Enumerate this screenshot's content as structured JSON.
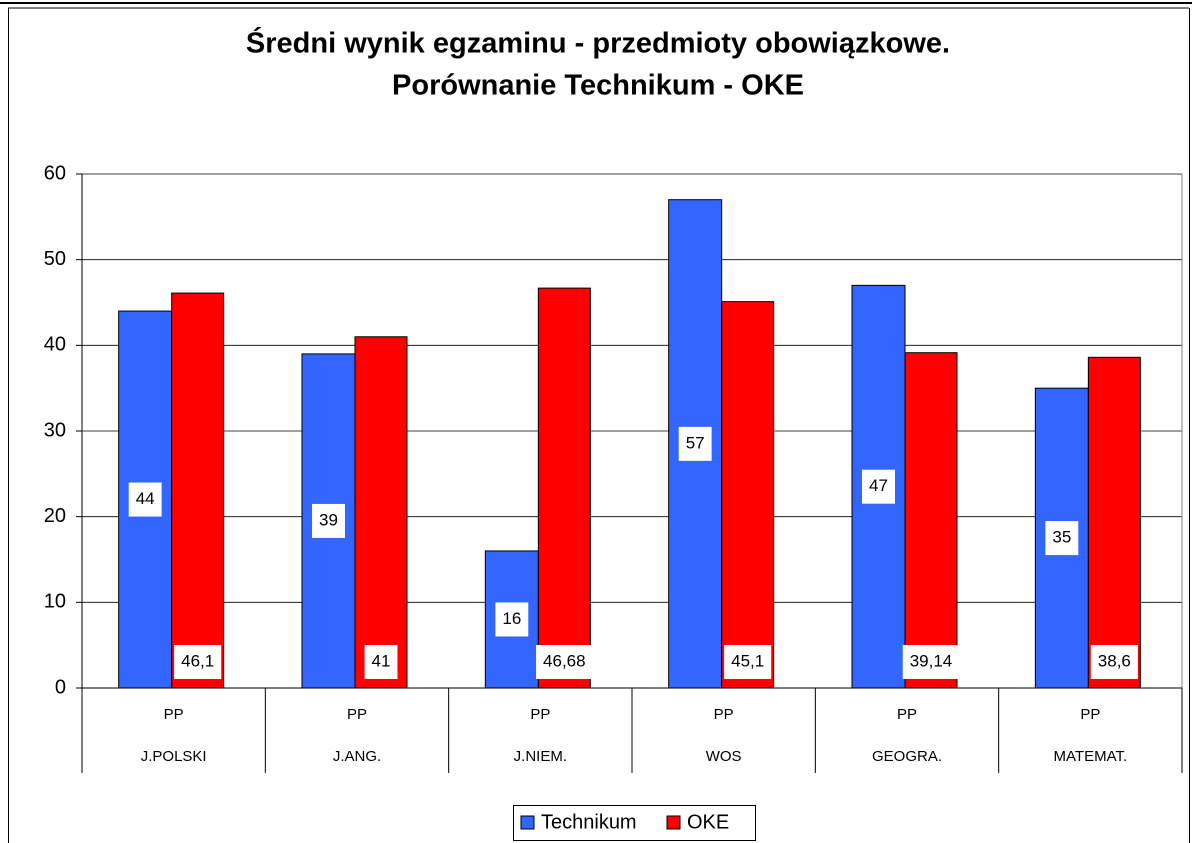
{
  "chart_data": {
    "type": "bar",
    "title": [
      "Średni wynik egzaminu - przedmioty obowiązkowe.",
      "Porównanie Technikum - OKE"
    ],
    "subcategories": [
      "PP",
      "PP",
      "PP",
      "PP",
      "PP",
      "PP"
    ],
    "categories": [
      "J.POLSKI",
      "J.ANG.",
      "J.NIEM.",
      "WOS",
      "GEOGRA.",
      "MATEMAT."
    ],
    "series": [
      {
        "name": "Technikum",
        "color": "#3366ff",
        "values": [
          44,
          39,
          16,
          57,
          47,
          35
        ]
      },
      {
        "name": "OKE",
        "color": "#ff0000",
        "values": [
          46.1,
          41,
          46.68,
          45.1,
          39.14,
          38.6
        ],
        "value_labels": [
          "46,1",
          "41",
          "46,68",
          "45,1",
          "39,14",
          "38,6"
        ]
      }
    ],
    "ylim": [
      0,
      60
    ],
    "yticks": [
      0,
      10,
      20,
      30,
      40,
      50,
      60
    ],
    "grid": true,
    "legend": "bottom"
  }
}
